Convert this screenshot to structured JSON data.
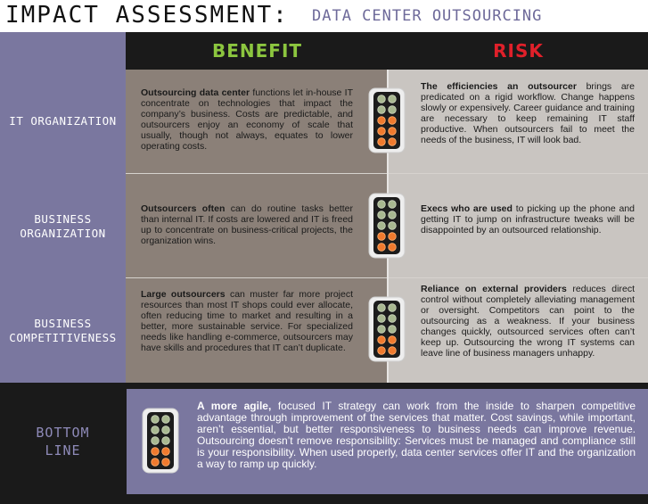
{
  "title": {
    "main": "IMPACT ASSESSMENT:",
    "sub": "DATA CENTER OUTSOURCING"
  },
  "headers": {
    "benefit": "BENEFIT",
    "risk": "RISK"
  },
  "rows": [
    {
      "label": "IT ORGANIZATION",
      "benefit_lead": "Outsourcing data center",
      "benefit_rest": " functions let in-house IT concentrate on technologies that impact the company’s business. Costs are predictable, and outsourcers enjoy an economy of scale that usually, though not always, equates to lower operating costs.",
      "risk_lead": "The efficiencies an outsourcer",
      "risk_rest": " brings are predicated on a rigid workflow. Change happens slowly or expensively. Career guidance and training are necessary to keep remaining IT staff productive. When outsourcers fail to meet the needs of the business, IT will look bad."
    },
    {
      "label": "BUSINESS\nORGANIZATION",
      "benefit_lead": "Outsourcers often",
      "benefit_rest": " can do routine tasks better than internal IT. If costs are lowered and IT is freed up to concentrate on business-critical projects, the organization wins.",
      "risk_lead": "Execs who are used",
      "risk_rest": " to picking up the phone and getting IT to jump on infrastructure tweaks will be disappointed by an outsourced relationship."
    },
    {
      "label": "BUSINESS\nCOMPETITIVENESS",
      "benefit_lead": "Large outsourcers",
      "benefit_rest": " can muster far more project resources than most IT shops could ever allocate, often reducing time to market and resulting in a better, more sustainable service. For specialized needs like handling e-commerce, outsourcers may have skills and procedures that IT can’t duplicate.",
      "risk_lead": "Reliance on external providers",
      "risk_rest": " reduces direct control without completely alleviating management or oversight. Competitors can point to the outsourcing as a weakness. If your business changes quickly, outsourced services often can’t keep up. Outsourcing the wrong IT systems can leave line of business managers unhappy."
    }
  ],
  "bottom": {
    "label": "BOTTOM\nLINE",
    "lead": "A more agile,",
    "rest": " focused IT strategy can work from the inside to sharpen competitive advantage through improvement of the services that matter. Cost savings, while important, aren’t essential, but better responsiveness to business needs can improve revenue. Outsourcing doesn’t remove responsibility: Services must be managed and compliance still is your responsibility. When used properly, data center services offer IT and the organization a way to ramp up quickly."
  },
  "colors": {
    "header_bg": "#1a1a1a",
    "benefit": "#8cc63f",
    "risk": "#e0202a",
    "label_column": "#7a779f",
    "benefit_cell": "#8b8078",
    "risk_cell": "#c9c5c1"
  },
  "icons": {
    "rating": "traffic-light-icon"
  },
  "ratings": [
    {
      "level": 3,
      "of": 5
    },
    {
      "level": 2,
      "of": 5
    },
    {
      "level": 2,
      "of": 5
    },
    {
      "level": 2,
      "of": 5
    }
  ]
}
